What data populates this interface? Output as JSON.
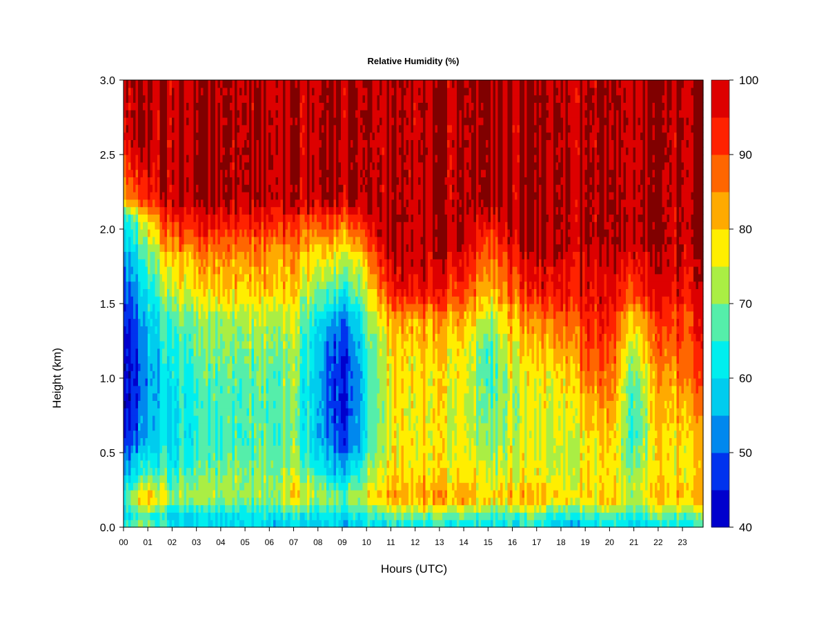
{
  "chart_data": {
    "type": "heatmap",
    "title": "Relative Humidity (%)",
    "xlabel": "Hours (UTC)",
    "ylabel": "Height (km)",
    "xlim": [
      0,
      23.85
    ],
    "ylim": [
      0.0,
      3.0
    ],
    "x_ticks": [
      "00",
      "01",
      "02",
      "03",
      "04",
      "05",
      "06",
      "07",
      "08",
      "09",
      "10",
      "11",
      "12",
      "13",
      "14",
      "15",
      "16",
      "17",
      "18",
      "19",
      "20",
      "21",
      "22",
      "23"
    ],
    "y_ticks": [
      "0.0",
      "0.5",
      "1.0",
      "1.5",
      "2.0",
      "2.5",
      "3.0"
    ],
    "colorbar": {
      "levels": [
        40,
        45,
        50,
        55,
        60,
        65,
        70,
        75,
        80,
        85,
        90,
        95,
        100
      ],
      "colors": [
        "#000080",
        "#0000cd",
        "#0033ee",
        "#0088ee",
        "#00ccee",
        "#00eeee",
        "#55eeaa",
        "#aaee44",
        "#ffee00",
        "#ffaa00",
        "#ff6600",
        "#ff2200",
        "#dd0000",
        "#800000"
      ],
      "tick_labels": [
        "40",
        "50",
        "60",
        "70",
        "80",
        "90",
        "100"
      ],
      "tick_values": [
        40,
        50,
        60,
        70,
        80,
        90,
        100
      ]
    },
    "profile_times": [
      0,
      0.5,
      1,
      1.5,
      2,
      3,
      4,
      5,
      6,
      7,
      8,
      8.5,
      9,
      9.5,
      10,
      10.5,
      11,
      12,
      13,
      14,
      15,
      16,
      17,
      18,
      19,
      20,
      21,
      22,
      23,
      23.85
    ],
    "profile_heights": [
      0.0,
      0.05,
      0.1,
      0.15,
      0.2,
      0.3,
      0.4,
      0.5,
      0.6,
      0.8,
      1.0,
      1.2,
      1.4,
      1.5,
      1.6,
      1.8,
      1.9,
      2.0,
      2.1,
      2.2,
      2.4,
      2.6,
      2.8,
      3.0
    ],
    "rh_profiles": [
      [
        68,
        64,
        62,
        66,
        67,
        61,
        56,
        52,
        48,
        45,
        44,
        45,
        48,
        49,
        51,
        56,
        60,
        63,
        70,
        85,
        92,
        98,
        100,
        100
      ],
      [
        70,
        66,
        65,
        72,
        76,
        66,
        60,
        55,
        50,
        46,
        45,
        46,
        49,
        51,
        53,
        58,
        63,
        66,
        72,
        88,
        94,
        100,
        100,
        100
      ],
      [
        70,
        66,
        66,
        78,
        82,
        72,
        64,
        59,
        56,
        55,
        54,
        55,
        58,
        60,
        62,
        68,
        72,
        76,
        82,
        92,
        96,
        100,
        100,
        100
      ],
      [
        68,
        64,
        65,
        76,
        80,
        72,
        66,
        62,
        60,
        60,
        60,
        61,
        63,
        66,
        70,
        75,
        80,
        86,
        90,
        96,
        100,
        100,
        100,
        100
      ],
      [
        64,
        60,
        62,
        68,
        72,
        68,
        64,
        62,
        61,
        62,
        63,
        65,
        68,
        72,
        76,
        80,
        86,
        92,
        96,
        100,
        100,
        100,
        100,
        100
      ],
      [
        60,
        58,
        62,
        68,
        72,
        70,
        66,
        64,
        63,
        64,
        65,
        67,
        70,
        74,
        78,
        82,
        88,
        92,
        96,
        100,
        100,
        100,
        100,
        100
      ],
      [
        60,
        58,
        62,
        67,
        72,
        71,
        69,
        67,
        66,
        66,
        67,
        69,
        72,
        76,
        80,
        84,
        88,
        92,
        96,
        100,
        100,
        100,
        100,
        100
      ],
      [
        60,
        60,
        63,
        68,
        72,
        72,
        70,
        68,
        67,
        67,
        68,
        70,
        73,
        76,
        80,
        84,
        88,
        92,
        96,
        100,
        100,
        100,
        100,
        100
      ],
      [
        60,
        60,
        64,
        68,
        72,
        72,
        71,
        69,
        68,
        68,
        69,
        71,
        74,
        78,
        82,
        84,
        88,
        93,
        96,
        100,
        100,
        100,
        100,
        100
      ],
      [
        60,
        61,
        66,
        74,
        79,
        75,
        72,
        70,
        70,
        70,
        71,
        72,
        74,
        77,
        80,
        83,
        86,
        90,
        95,
        100,
        100,
        100,
        100,
        100
      ],
      [
        58,
        60,
        64,
        70,
        74,
        70,
        64,
        60,
        58,
        57,
        58,
        60,
        63,
        68,
        72,
        78,
        82,
        88,
        94,
        100,
        100,
        100,
        100,
        100
      ],
      [
        56,
        58,
        62,
        66,
        68,
        62,
        56,
        52,
        48,
        46,
        46,
        48,
        54,
        60,
        66,
        74,
        80,
        86,
        92,
        100,
        100,
        100,
        100,
        100
      ],
      [
        56,
        58,
        62,
        66,
        70,
        62,
        56,
        52,
        48,
        46,
        46,
        47,
        52,
        58,
        66,
        74,
        80,
        86,
        92,
        100,
        100,
        100,
        100,
        100
      ],
      [
        58,
        60,
        64,
        70,
        74,
        66,
        60,
        56,
        52,
        50,
        50,
        52,
        56,
        62,
        68,
        76,
        82,
        88,
        94,
        100,
        100,
        100,
        100,
        100
      ],
      [
        60,
        62,
        66,
        72,
        76,
        72,
        68,
        64,
        62,
        62,
        62,
        64,
        68,
        72,
        76,
        80,
        86,
        92,
        96,
        100,
        100,
        100,
        100,
        100
      ],
      [
        62,
        64,
        70,
        76,
        80,
        78,
        76,
        74,
        73,
        72,
        72,
        74,
        78,
        84,
        88,
        94,
        98,
        100,
        100,
        100,
        100,
        100,
        100,
        100
      ],
      [
        62,
        64,
        72,
        80,
        84,
        80,
        78,
        77,
        76,
        76,
        77,
        78,
        82,
        90,
        94,
        98,
        100,
        100,
        100,
        100,
        100,
        100,
        100,
        100
      ],
      [
        62,
        65,
        72,
        80,
        84,
        81,
        79,
        78,
        78,
        78,
        79,
        80,
        84,
        92,
        96,
        100,
        100,
        100,
        100,
        100,
        100,
        100,
        100,
        100
      ],
      [
        62,
        65,
        72,
        80,
        83,
        80,
        78,
        77,
        77,
        77,
        78,
        80,
        83,
        90,
        94,
        98,
        100,
        100,
        100,
        100,
        100,
        100,
        100,
        100
      ],
      [
        62,
        65,
        72,
        80,
        84,
        80,
        78,
        77,
        76,
        76,
        77,
        79,
        82,
        88,
        92,
        96,
        100,
        100,
        100,
        100,
        100,
        100,
        100,
        100
      ],
      [
        60,
        62,
        66,
        74,
        78,
        74,
        72,
        70,
        68,
        66,
        64,
        64,
        70,
        76,
        80,
        84,
        88,
        92,
        96,
        100,
        100,
        100,
        100,
        100
      ],
      [
        62,
        64,
        70,
        78,
        82,
        78,
        76,
        75,
        74,
        74,
        75,
        78,
        82,
        86,
        90,
        94,
        98,
        100,
        100,
        100,
        100,
        100,
        100,
        100
      ],
      [
        62,
        64,
        70,
        78,
        80,
        77,
        75,
        74,
        74,
        74,
        76,
        79,
        84,
        90,
        94,
        96,
        100,
        100,
        100,
        100,
        100,
        100,
        100,
        100
      ],
      [
        56,
        60,
        66,
        74,
        78,
        76,
        74,
        74,
        75,
        76,
        78,
        82,
        88,
        94,
        96,
        98,
        100,
        100,
        100,
        100,
        100,
        100,
        100,
        100
      ],
      [
        60,
        62,
        68,
        76,
        80,
        78,
        77,
        77,
        78,
        82,
        86,
        90,
        92,
        94,
        96,
        98,
        100,
        100,
        100,
        100,
        100,
        100,
        100,
        100
      ],
      [
        62,
        64,
        70,
        78,
        80,
        78,
        78,
        78,
        80,
        84,
        88,
        90,
        94,
        96,
        96,
        98,
        100,
        100,
        100,
        100,
        100,
        100,
        100,
        100
      ],
      [
        60,
        62,
        66,
        72,
        74,
        72,
        70,
        68,
        66,
        66,
        68,
        74,
        80,
        88,
        92,
        96,
        100,
        100,
        100,
        100,
        100,
        100,
        100,
        100
      ],
      [
        62,
        64,
        70,
        78,
        80,
        78,
        78,
        78,
        79,
        80,
        82,
        86,
        90,
        94,
        96,
        98,
        100,
        100,
        100,
        100,
        100,
        100,
        100,
        100
      ],
      [
        62,
        64,
        70,
        78,
        82,
        80,
        78,
        78,
        79,
        82,
        86,
        90,
        92,
        94,
        96,
        98,
        100,
        100,
        100,
        100,
        100,
        100,
        100,
        100
      ],
      [
        62,
        64,
        70,
        78,
        80,
        78,
        78,
        78,
        80,
        84,
        88,
        90,
        92,
        94,
        96,
        98,
        100,
        100,
        100,
        100,
        100,
        100,
        100,
        100
      ]
    ]
  }
}
